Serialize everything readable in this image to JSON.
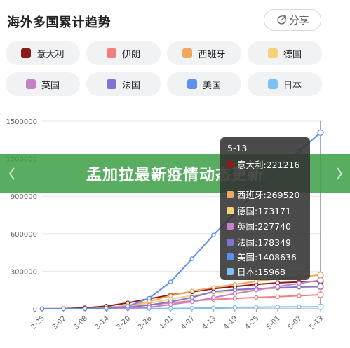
{
  "header": {
    "title": "海外多国累计趋势",
    "share_label": "分享"
  },
  "legend": [
    {
      "name": "意大利",
      "color": "#8b1a1a"
    },
    {
      "name": "伊朗",
      "color": "#f08080"
    },
    {
      "name": "西班牙",
      "color": "#f0a860"
    },
    {
      "name": "德国",
      "color": "#f5d27a"
    },
    {
      "name": "英国",
      "color": "#c77fc7"
    },
    {
      "name": "法国",
      "color": "#8073d6"
    },
    {
      "name": "美国",
      "color": "#5b8ff0"
    },
    {
      "name": "日本",
      "color": "#7cc0f5"
    }
  ],
  "banner": {
    "text": "孟加拉最新疫情动态更新"
  },
  "tooltip": {
    "date": "5-13",
    "rows": [
      {
        "label": "意大利:221216",
        "color": "#8b1a1a"
      },
      {
        "label": "西班牙:269520",
        "color": "#f0a860"
      },
      {
        "label": "德国:173171",
        "color": "#f5d27a"
      },
      {
        "label": "英国:227740",
        "color": "#c77fc7"
      },
      {
        "label": "法国:178349",
        "color": "#8073d6"
      },
      {
        "label": "美国:1408636",
        "color": "#5b8ff0"
      },
      {
        "label": "日本:15968",
        "color": "#7cc0f5"
      }
    ]
  },
  "chart_data": {
    "type": "line",
    "categories": [
      "2-25",
      "3-02",
      "3-08",
      "3-14",
      "3-20",
      "3-26",
      "4-01",
      "4-07",
      "4-13",
      "4-19",
      "4-25",
      "5-01",
      "5-07",
      "5-13"
    ],
    "yticks": [
      "0",
      "300000",
      "600000",
      "900000",
      "1200000",
      "1500000"
    ],
    "ylim": [
      0,
      1500000
    ],
    "grid": true,
    "series": [
      {
        "name": "美国",
        "color": "#5b8ff0",
        "values": [
          0,
          0,
          500,
          3000,
          19000,
          85000,
          215000,
          400000,
          590000,
          760000,
          940000,
          1100000,
          1260000,
          1408636
        ]
      },
      {
        "name": "西班牙",
        "color": "#f0a860",
        "values": [
          0,
          0,
          700,
          6000,
          25000,
          58000,
          104000,
          141000,
          170000,
          195000,
          220000,
          240000,
          255000,
          269520
        ]
      },
      {
        "name": "英国",
        "color": "#c77fc7",
        "values": [
          0,
          0,
          200,
          1200,
          4000,
          12000,
          34000,
          56000,
          89000,
          121000,
          149000,
          178000,
          203000,
          227740
        ]
      },
      {
        "name": "意大利",
        "color": "#8b1a1a",
        "values": [
          300,
          1700,
          7400,
          21000,
          47000,
          80000,
          110000,
          135000,
          160000,
          178000,
          195000,
          207000,
          215000,
          221216
        ]
      },
      {
        "name": "法国",
        "color": "#8073d6",
        "values": [
          0,
          200,
          1100,
          4500,
          12000,
          29000,
          57000,
          90000,
          137000,
          153000,
          160000,
          168000,
          174000,
          178349
        ]
      },
      {
        "name": "德国",
        "color": "#f5d27a",
        "values": [
          0,
          150,
          900,
          4600,
          19000,
          44000,
          78000,
          106000,
          130000,
          145000,
          156000,
          164000,
          169000,
          173171
        ]
      },
      {
        "name": "伊朗",
        "color": "#f08080",
        "values": [
          100,
          1500,
          6500,
          13000,
          21000,
          29000,
          48000,
          63000,
          74000,
          83000,
          90000,
          96000,
          104000,
          112000
        ]
      },
      {
        "name": "日本",
        "color": "#7cc0f5",
        "values": [
          150,
          250,
          450,
          800,
          1000,
          1400,
          2400,
          4300,
          8000,
          11000,
          13000,
          14500,
          15500,
          15968
        ]
      }
    ]
  }
}
